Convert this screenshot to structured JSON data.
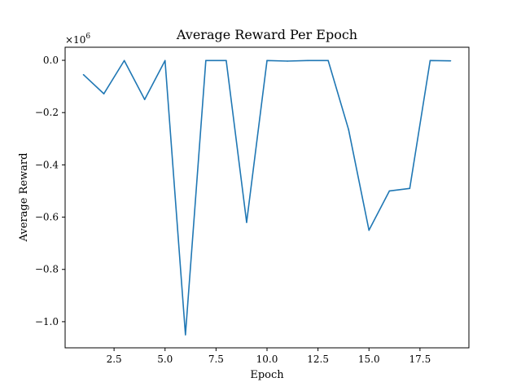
{
  "chart_data": {
    "type": "line",
    "title": "Average Reward Per Epoch",
    "xlabel": "Epoch",
    "ylabel": "Average Reward",
    "y_offset_label": "×10",
    "y_offset_exponent": "6",
    "xlim": [
      0.1,
      19.9
    ],
    "ylim": [
      -1.1,
      0.05
    ],
    "x_ticks": [
      2.5,
      5.0,
      7.5,
      10.0,
      12.5,
      15.0,
      17.5
    ],
    "x_tick_labels": [
      "2.5",
      "5.0",
      "7.5",
      "10.0",
      "12.5",
      "15.0",
      "17.5"
    ],
    "y_ticks": [
      0.0,
      -0.2,
      -0.4,
      -0.6,
      -0.8,
      -1.0
    ],
    "y_tick_labels": [
      "0.0",
      "−0.2",
      "−0.4",
      "−0.6",
      "−0.8",
      "−1.0"
    ],
    "grid": false,
    "series": [
      {
        "color": "#1f77b4",
        "x": [
          1,
          2,
          3,
          4,
          5,
          6,
          7,
          8,
          9,
          10,
          11,
          12,
          13,
          14,
          15,
          16,
          17,
          18,
          19
        ],
        "y": [
          -0.055,
          -0.128,
          -0.001,
          -0.15,
          -0.001,
          -1.05,
          -0.001,
          -0.001,
          -0.62,
          -0.001,
          -0.003,
          -0.001,
          -0.001,
          -0.265,
          -0.65,
          -0.5,
          -0.49,
          -0.001,
          -0.002
        ]
      }
    ]
  }
}
